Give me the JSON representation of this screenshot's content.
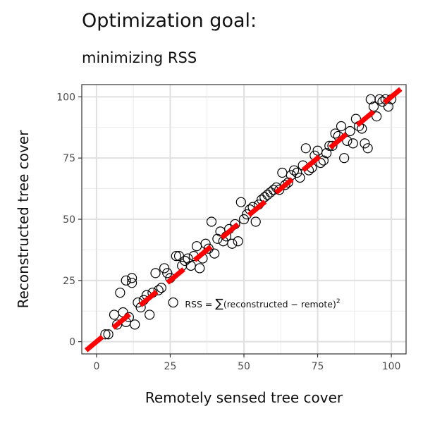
{
  "chart_data": {
    "type": "scatter",
    "title": "Optimization goal:",
    "subtitle": "minimizing RSS",
    "xlabel": "Remotely sensed tree cover",
    "ylabel": "Reconstructed tree cover",
    "xlim": [
      -5,
      105
    ],
    "ylim": [
      -5,
      105
    ],
    "xticks": [
      0,
      25,
      50,
      75,
      100
    ],
    "yticks": [
      0,
      25,
      50,
      75,
      100
    ],
    "grid": true,
    "annotation": {
      "text_prefix": "RSS = ",
      "sum_symbol": "∑",
      "body": "(reconstructed − remote)",
      "superscript": "2",
      "x": 30,
      "y": 14
    },
    "fit_line": {
      "color": "#ff0000",
      "x": [
        -5,
        105
      ],
      "y": [
        -5,
        105
      ],
      "dash": "dashed"
    },
    "points": {
      "x": [
        3,
        4,
        6,
        7,
        8,
        9,
        10,
        10,
        11,
        12,
        12,
        13,
        14,
        15,
        16,
        17,
        18,
        19,
        20,
        21,
        22,
        23,
        24,
        25,
        26,
        27,
        28,
        29,
        30,
        31,
        32,
        33,
        34,
        35,
        36,
        37,
        38,
        39,
        40,
        41,
        42,
        43,
        44,
        45,
        46,
        47,
        48,
        49,
        50,
        51,
        52,
        53,
        54,
        55,
        56,
        57,
        58,
        59,
        60,
        61,
        62,
        63,
        64,
        65,
        66,
        67,
        68,
        69,
        70,
        71,
        72,
        73,
        74,
        75,
        76,
        77,
        78,
        79,
        80,
        81,
        82,
        83,
        84,
        85,
        86,
        87,
        88,
        89,
        90,
        91,
        92,
        93,
        94,
        95,
        96,
        97,
        98,
        99,
        100
      ],
      "y": [
        3,
        3,
        11,
        7,
        20,
        12,
        8,
        25,
        10,
        26,
        24,
        7,
        16,
        14,
        17,
        19,
        11,
        20,
        28,
        21,
        22,
        30,
        28,
        26,
        16,
        35,
        35,
        31,
        33,
        34,
        31,
        35,
        39,
        30,
        34,
        40,
        38,
        49,
        36,
        42,
        45,
        41,
        43,
        46,
        40,
        48,
        41,
        57,
        50,
        52,
        54,
        55,
        49,
        56,
        58,
        59,
        60,
        61,
        62,
        63,
        62,
        69,
        64,
        65,
        68,
        70,
        69,
        67,
        72,
        79,
        70,
        71,
        76,
        78,
        73,
        74,
        77,
        80,
        80,
        85,
        84,
        88,
        75,
        82,
        86,
        81,
        91,
        88,
        87,
        81,
        79,
        99,
        96,
        92,
        99,
        98,
        99,
        96,
        99
      ]
    }
  }
}
